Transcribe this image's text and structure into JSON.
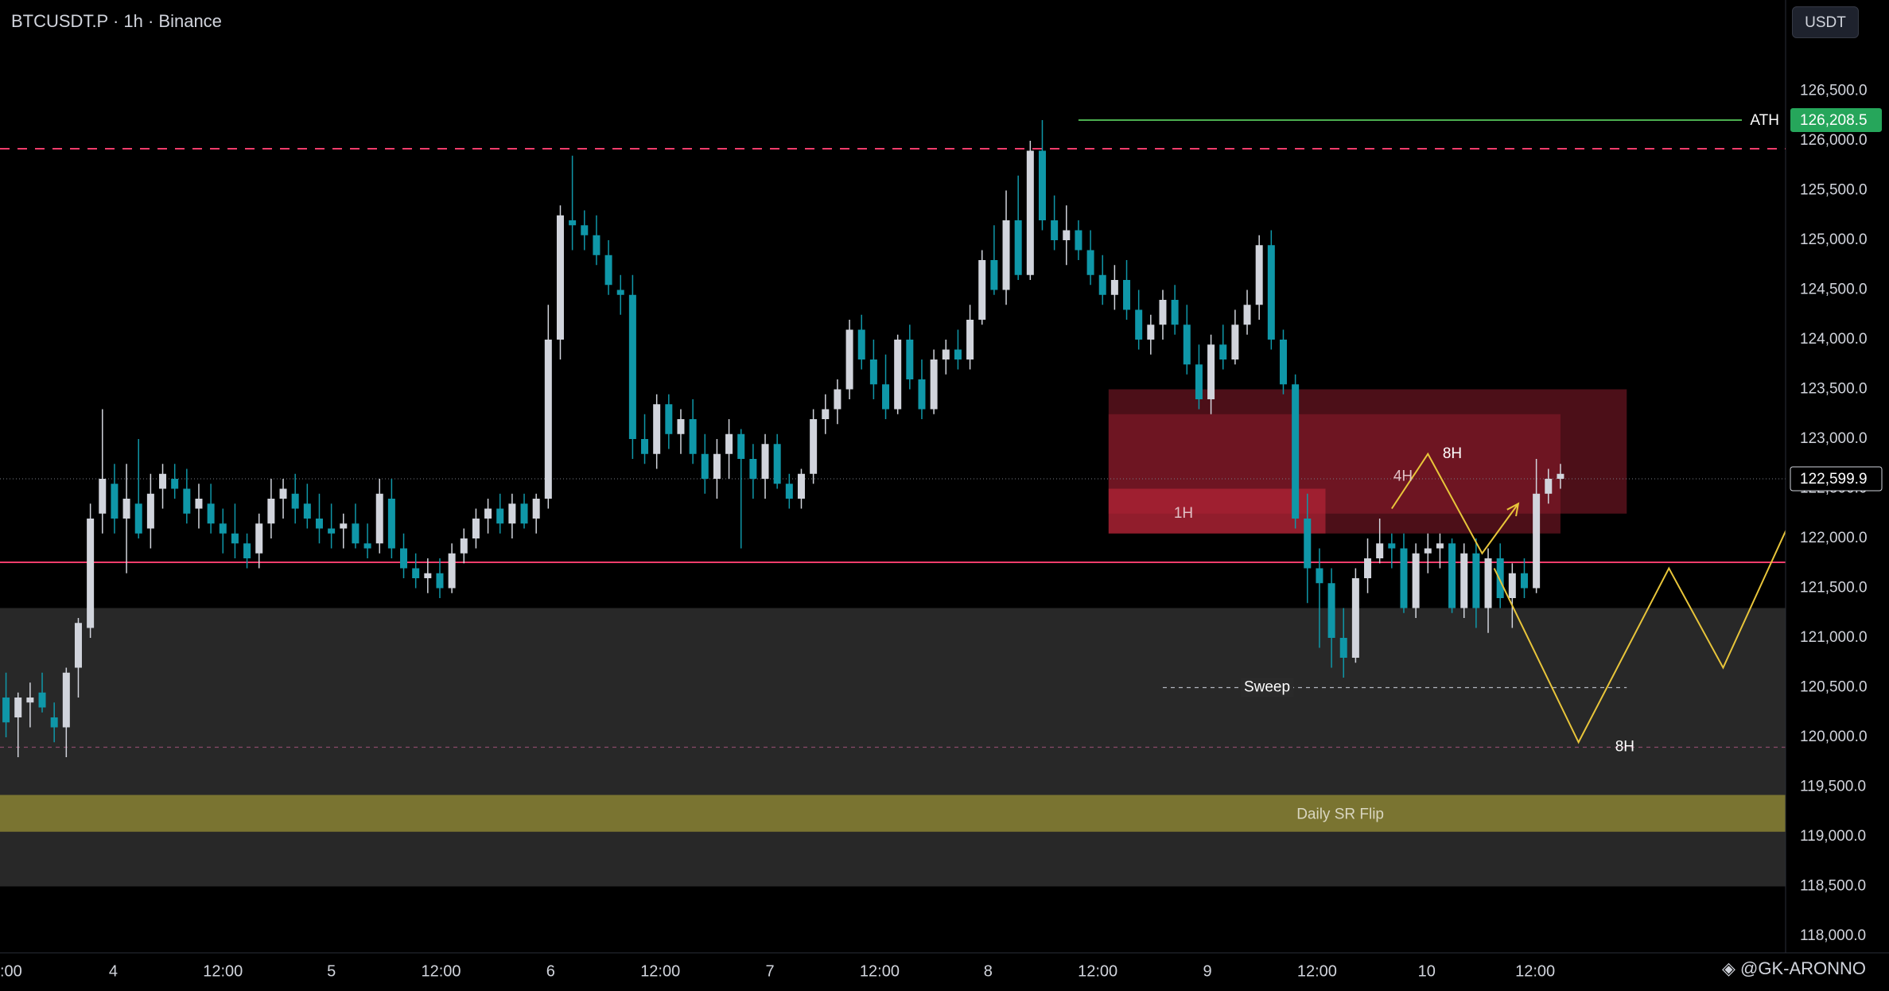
{
  "header": {
    "symbol_label": "BTCUSDT.P · 1h · Binance",
    "currency": "USDT"
  },
  "watermark": "◈ @GK-ARONNO",
  "colors": {
    "up": "#d1d4dc",
    "down": "#0f97a8",
    "ath": "#4caf50",
    "resistance": "#f23d6b",
    "zone": "#8b1c2b",
    "sr_flip": "#7a7431",
    "gray_zone": "#2a2a2a",
    "projection": "#e8c53a"
  },
  "chart_data": {
    "type": "candlestick",
    "title": "",
    "timeframe": "1h",
    "ylim": [
      117800,
      126900
    ],
    "yticks": [
      118000,
      118500,
      119000,
      119500,
      120000,
      120500,
      121000,
      121500,
      122000,
      122500,
      123000,
      123500,
      124000,
      124500,
      125000,
      125500,
      126000,
      126500
    ],
    "ytick_labels": [
      "118,000.0",
      "118,500.0",
      "119,000.0",
      "119,500.0",
      "120,000.0",
      "120,500.0",
      "121,000.0",
      "121,500.0",
      "122,000.0",
      "122,500.0",
      "123,000.0",
      "123,500.0",
      "124,000.0",
      "124,500.0",
      "125,000.0",
      "125,500.0",
      "126,000.0",
      "126,500.0"
    ],
    "xlim": [
      0,
      142
    ],
    "xticks": [
      {
        "x": 0,
        "label": ":00"
      },
      {
        "x": 9.4,
        "label": "4"
      },
      {
        "x": 18.5,
        "label": "12:00"
      },
      {
        "x": 27.5,
        "label": "5"
      },
      {
        "x": 36.6,
        "label": "12:00"
      },
      {
        "x": 45.7,
        "label": "6"
      },
      {
        "x": 54.8,
        "label": "12:00"
      },
      {
        "x": 63.9,
        "label": "7"
      },
      {
        "x": 73,
        "label": "12:00"
      },
      {
        "x": 82,
        "label": "8"
      },
      {
        "x": 91.1,
        "label": "12:00"
      },
      {
        "x": 100.2,
        "label": "9"
      },
      {
        "x": 109.3,
        "label": "12:00"
      },
      {
        "x": 118.4,
        "label": "10"
      },
      {
        "x": 127.4,
        "label": "12:00"
      }
    ],
    "ohlc": [
      [
        120400,
        120650,
        120000,
        120150
      ],
      [
        120200,
        120450,
        119800,
        120400
      ],
      [
        120350,
        120550,
        120100,
        120400
      ],
      [
        120450,
        120650,
        120250,
        120300
      ],
      [
        120200,
        120350,
        119950,
        120100
      ],
      [
        120100,
        120700,
        119800,
        120650
      ],
      [
        120700,
        121200,
        120400,
        121150
      ],
      [
        121100,
        122350,
        121000,
        122200
      ],
      [
        122250,
        123300,
        122050,
        122600
      ],
      [
        122550,
        122750,
        122050,
        122200
      ],
      [
        122200,
        122750,
        121650,
        122400
      ],
      [
        122350,
        123000,
        122000,
        122050
      ],
      [
        122100,
        122650,
        121900,
        122450
      ],
      [
        122500,
        122750,
        122300,
        122650
      ],
      [
        122600,
        122750,
        122400,
        122500
      ],
      [
        122500,
        122700,
        122150,
        122250
      ],
      [
        122300,
        122550,
        122100,
        122400
      ],
      [
        122350,
        122550,
        122050,
        122150
      ],
      [
        122150,
        122300,
        121850,
        122050
      ],
      [
        122050,
        122350,
        121800,
        121950
      ],
      [
        121950,
        122050,
        121700,
        121800
      ],
      [
        121850,
        122250,
        121700,
        122150
      ],
      [
        122150,
        122600,
        122000,
        122400
      ],
      [
        122400,
        122600,
        122200,
        122500
      ],
      [
        122450,
        122650,
        122150,
        122300
      ],
      [
        122350,
        122550,
        122100,
        122200
      ],
      [
        122200,
        122450,
        121950,
        122100
      ],
      [
        122100,
        122350,
        121900,
        122050
      ],
      [
        122100,
        122250,
        121900,
        122150
      ],
      [
        122150,
        122350,
        121900,
        121950
      ],
      [
        121950,
        122150,
        121800,
        121900
      ],
      [
        121950,
        122600,
        121850,
        122450
      ],
      [
        122400,
        122600,
        121800,
        121900
      ],
      [
        121900,
        122050,
        121600,
        121700
      ],
      [
        121700,
        121850,
        121500,
        121600
      ],
      [
        121600,
        121800,
        121450,
        121650
      ],
      [
        121650,
        121800,
        121400,
        121500
      ],
      [
        121500,
        121950,
        121450,
        121850
      ],
      [
        121850,
        122100,
        121750,
        122000
      ],
      [
        122000,
        122300,
        121900,
        122200
      ],
      [
        122200,
        122400,
        122050,
        122300
      ],
      [
        122300,
        122450,
        122050,
        122150
      ],
      [
        122150,
        122450,
        122000,
        122350
      ],
      [
        122350,
        122450,
        122100,
        122150
      ],
      [
        122200,
        122450,
        122050,
        122400
      ],
      [
        122400,
        124350,
        122300,
        124000
      ],
      [
        124000,
        125350,
        123800,
        125250
      ],
      [
        125200,
        125850,
        124900,
        125150
      ],
      [
        125150,
        125300,
        124900,
        125050
      ],
      [
        125050,
        125250,
        124750,
        124850
      ],
      [
        124850,
        125000,
        124450,
        124550
      ],
      [
        124500,
        124650,
        124250,
        124450
      ],
      [
        124450,
        124650,
        122800,
        123000
      ],
      [
        123000,
        123250,
        122750,
        122850
      ],
      [
        122850,
        123450,
        122700,
        123350
      ],
      [
        123350,
        123450,
        122900,
        123050
      ],
      [
        123050,
        123300,
        122850,
        123200
      ],
      [
        123200,
        123400,
        122750,
        122850
      ],
      [
        122850,
        123050,
        122450,
        122600
      ],
      [
        122600,
        123000,
        122400,
        122850
      ],
      [
        122850,
        123200,
        122600,
        123050
      ],
      [
        123050,
        123100,
        121900,
        122800
      ],
      [
        122800,
        122950,
        122400,
        122600
      ],
      [
        122600,
        123050,
        122400,
        122950
      ],
      [
        122950,
        123050,
        122500,
        122550
      ],
      [
        122550,
        122650,
        122300,
        122400
      ],
      [
        122400,
        122700,
        122300,
        122650
      ],
      [
        122650,
        123300,
        122550,
        123200
      ],
      [
        123200,
        123450,
        123050,
        123300
      ],
      [
        123300,
        123600,
        123150,
        123500
      ],
      [
        123500,
        124200,
        123400,
        124100
      ],
      [
        124100,
        124250,
        123700,
        123800
      ],
      [
        123800,
        124000,
        123400,
        123550
      ],
      [
        123550,
        123850,
        123200,
        123300
      ],
      [
        123300,
        124050,
        123250,
        124000
      ],
      [
        124000,
        124150,
        123500,
        123600
      ],
      [
        123600,
        123800,
        123200,
        123300
      ],
      [
        123300,
        123900,
        123250,
        123800
      ],
      [
        123800,
        124000,
        123650,
        123900
      ],
      [
        123900,
        124100,
        123700,
        123800
      ],
      [
        123800,
        124350,
        123700,
        124200
      ],
      [
        124200,
        124900,
        124150,
        124800
      ],
      [
        124800,
        125150,
        124450,
        124500
      ],
      [
        124500,
        125500,
        124350,
        125200
      ],
      [
        125200,
        125650,
        124600,
        124650
      ],
      [
        124650,
        126000,
        124600,
        125900
      ],
      [
        125900,
        126208,
        125100,
        125200
      ],
      [
        125200,
        125450,
        124900,
        125000
      ],
      [
        125000,
        125350,
        124750,
        125100
      ],
      [
        125100,
        125200,
        124800,
        124900
      ],
      [
        124900,
        125100,
        124550,
        124650
      ],
      [
        124650,
        124850,
        124350,
        124450
      ],
      [
        124450,
        124750,
        124300,
        124600
      ],
      [
        124600,
        124800,
        124200,
        124300
      ],
      [
        124300,
        124500,
        123900,
        124000
      ],
      [
        124000,
        124250,
        123850,
        124150
      ],
      [
        124150,
        124500,
        124000,
        124400
      ],
      [
        124400,
        124550,
        124050,
        124150
      ],
      [
        124150,
        124350,
        123650,
        123750
      ],
      [
        123750,
        123950,
        123300,
        123400
      ],
      [
        123400,
        124050,
        123250,
        123950
      ],
      [
        123950,
        124150,
        123700,
        123800
      ],
      [
        123800,
        124300,
        123750,
        124150
      ],
      [
        124150,
        124500,
        124050,
        124350
      ],
      [
        124350,
        125050,
        124200,
        124950
      ],
      [
        124950,
        125100,
        123900,
        124000
      ],
      [
        124000,
        124100,
        123450,
        123550
      ],
      [
        123550,
        123650,
        122100,
        122200
      ],
      [
        122200,
        122450,
        121350,
        121700
      ],
      [
        121700,
        121900,
        120900,
        121550
      ],
      [
        121550,
        121700,
        120700,
        121000
      ],
      [
        121000,
        121300,
        120600,
        120800
      ],
      [
        120800,
        121700,
        120750,
        121600
      ],
      [
        121600,
        122000,
        121450,
        121800
      ],
      [
        121800,
        122200,
        121750,
        121950
      ],
      [
        121950,
        122050,
        121700,
        121900
      ],
      [
        121900,
        122050,
        121250,
        121300
      ],
      [
        121300,
        121950,
        121200,
        121850
      ],
      [
        121850,
        122050,
        121650,
        121900
      ],
      [
        121900,
        122050,
        121700,
        121950
      ],
      [
        121950,
        122000,
        121250,
        121300
      ],
      [
        121300,
        121950,
        121200,
        121850
      ],
      [
        121850,
        122000,
        121100,
        121300
      ],
      [
        121300,
        121900,
        121050,
        121800
      ],
      [
        121800,
        121950,
        121300,
        121400
      ],
      [
        121400,
        121750,
        121100,
        121650
      ],
      [
        121650,
        121800,
        121400,
        121500
      ],
      [
        121500,
        122800,
        121450,
        122450
      ],
      [
        122450,
        122700,
        122350,
        122600
      ],
      [
        122600,
        122750,
        122500,
        122650
      ]
    ],
    "horizontal_lines": [
      {
        "name": "ATH",
        "price": 126208.5,
        "label": "ATH",
        "axis_label": "126,208.5"
      },
      {
        "name": "resistance-dashed",
        "price": 125920
      },
      {
        "name": "support-solid",
        "price": 121760
      },
      {
        "name": "current-price",
        "price": 122599.9,
        "axis_label": "122,599.9"
      }
    ],
    "zones": [
      {
        "name": "8H",
        "label": "8H",
        "x1": 92,
        "x2": 135,
        "y1": 122250,
        "y2": 123500
      },
      {
        "name": "4H",
        "label": "4H",
        "x1": 92,
        "x2": 129.5,
        "y1": 122050,
        "y2": 123250
      },
      {
        "name": "1H",
        "label": "1H",
        "x1": 92,
        "x2": 110,
        "y1": 122050,
        "y2": 122500
      },
      {
        "name": "gray-zone",
        "x1": 0,
        "x2": 149.5,
        "y1": 118500,
        "y2": 121300
      },
      {
        "name": "daily-sr-flip",
        "label": "Daily SR Flip",
        "x1": 0,
        "x2": 149.5,
        "y1": 119050,
        "y2": 119420
      }
    ],
    "annotations": [
      {
        "name": "sweep",
        "label": "Sweep",
        "price": 120500,
        "x1": 96.5,
        "x2": 135
      },
      {
        "name": "8H-low",
        "label": "8H",
        "price": 119900,
        "x1": 0,
        "x2": 149.5
      }
    ],
    "projections": [
      {
        "name": "path-a",
        "points": [
          [
            115.5,
            122300
          ],
          [
            118.5,
            122850
          ],
          [
            123,
            121850
          ],
          [
            126,
            122350
          ]
        ]
      },
      {
        "name": "path-b",
        "points": [
          [
            124,
            121700
          ],
          [
            131,
            119950
          ],
          [
            138.5,
            121700
          ],
          [
            143,
            120700
          ],
          [
            153,
            123350
          ]
        ]
      }
    ]
  }
}
